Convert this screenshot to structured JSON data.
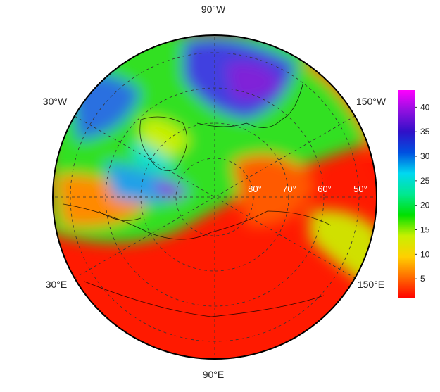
{
  "map": {
    "longitude_labels": {
      "top": "90°W",
      "upper_left": "30°W",
      "upper_right": "150°W",
      "lower_left": "30°E",
      "lower_right": "150°E",
      "bottom": "90°E"
    },
    "latitude_labels": [
      "80°",
      "70°",
      "60°",
      "50°"
    ],
    "colorbar": {
      "ylim": [
        1,
        43.5
      ],
      "yticks": [
        5,
        10,
        15,
        20,
        25,
        30,
        35,
        40
      ],
      "colors": [
        "#ff0000",
        "#ff6a00",
        "#ffd000",
        "#c8f000",
        "#00e000",
        "#00e890",
        "#00d8f0",
        "#0050e0",
        "#3010c8",
        "#9010e0",
        "#ff00ff"
      ]
    }
  }
}
